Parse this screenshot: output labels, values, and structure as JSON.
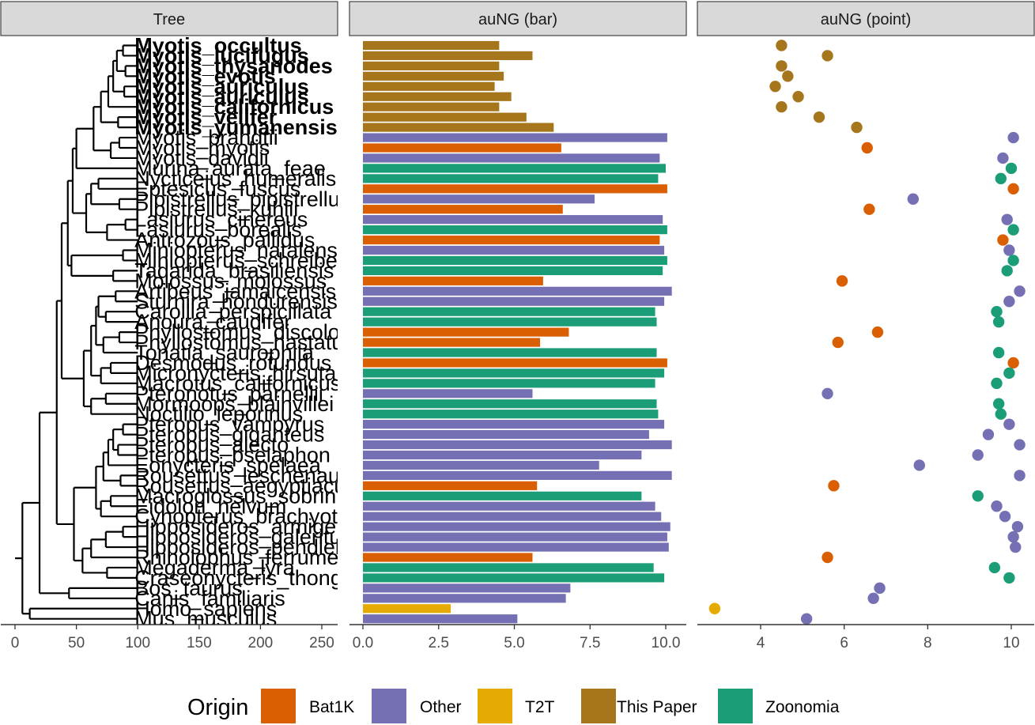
{
  "chart_data": [
    {
      "type": "tree",
      "panel_title": "Tree",
      "xlim": [
        0,
        265
      ],
      "x_ticks": [
        0,
        50,
        100,
        150,
        200,
        250
      ],
      "x_tick_labels": [
        "0",
        "50",
        "100",
        "150",
        "200",
        "250"
      ]
    },
    {
      "type": "bar",
      "panel_title": "auNG (bar)",
      "xlim": [
        0,
        10.6
      ],
      "x_ticks": [
        0,
        2.5,
        5,
        7.5,
        10
      ],
      "x_tick_labels": [
        "0.0",
        "2.5",
        "5.0",
        "7.5",
        "10.0"
      ]
    },
    {
      "type": "scatter",
      "panel_title": "auNG (point)",
      "xlim": [
        2.4,
        10.4
      ],
      "x_ticks": [
        4,
        6,
        8,
        10
      ],
      "x_tick_labels": [
        "4",
        "6",
        "8",
        "10"
      ]
    }
  ],
  "species": [
    {
      "name": "Myotis_occultus",
      "value": 4.5,
      "origin": "This Paper",
      "bold": true
    },
    {
      "name": "Myotis_lucifugus",
      "value": 5.6,
      "origin": "This Paper",
      "bold": true
    },
    {
      "name": "Myotis_thysanodes",
      "value": 4.5,
      "origin": "This Paper",
      "bold": true
    },
    {
      "name": "Myotis_evotis",
      "value": 4.65,
      "origin": "This Paper",
      "bold": true
    },
    {
      "name": "Myotis_auriculus",
      "value": 4.35,
      "origin": "This Paper",
      "bold": true
    },
    {
      "name": "Myotis_auriculus",
      "value": 4.9,
      "origin": "This Paper",
      "bold": true
    },
    {
      "name": "Myotis_californicus",
      "value": 4.5,
      "origin": "This Paper",
      "bold": true
    },
    {
      "name": "Myotis_velifer",
      "value": 5.4,
      "origin": "This Paper",
      "bold": true
    },
    {
      "name": "Myotis_yumanensis",
      "value": 6.3,
      "origin": "This Paper",
      "bold": true
    },
    {
      "name": "Myotis_brandtii",
      "value": 10.05,
      "origin": "Other",
      "bold": false
    },
    {
      "name": "Myotis_myotis",
      "value": 6.55,
      "origin": "Bat1K",
      "bold": false
    },
    {
      "name": "Myotis_davidii",
      "value": 9.8,
      "origin": "Other",
      "bold": false
    },
    {
      "name": "Murina_aurata_feae",
      "value": 10.0,
      "origin": "Zoonomia",
      "bold": false
    },
    {
      "name": "Nycticeius_humeralis",
      "value": 9.75,
      "origin": "Zoonomia",
      "bold": false
    },
    {
      "name": "Eptesicus_fuscus",
      "value": 10.05,
      "origin": "Bat1K",
      "bold": false
    },
    {
      "name": "Pipistrellus_pipistrellus",
      "value": 7.65,
      "origin": "Other",
      "bold": false
    },
    {
      "name": "Pipistrellus_kuhlii",
      "value": 6.6,
      "origin": "Bat1K",
      "bold": false
    },
    {
      "name": "Lasiurus_cinereus",
      "value": 9.9,
      "origin": "Other",
      "bold": false
    },
    {
      "name": "Lasiurus_borealis",
      "value": 10.05,
      "origin": "Zoonomia",
      "bold": false
    },
    {
      "name": "Antrozous_pallidus",
      "value": 9.8,
      "origin": "Bat1K",
      "bold": false
    },
    {
      "name": "Miniopterus_natalensis",
      "value": 9.95,
      "origin": "Other",
      "bold": false
    },
    {
      "name": "Miniopterus_schreibersii",
      "value": 10.05,
      "origin": "Zoonomia",
      "bold": false
    },
    {
      "name": "Tadarida_brasiliensis",
      "value": 9.9,
      "origin": "Zoonomia",
      "bold": false
    },
    {
      "name": "Molossus_molossus",
      "value": 5.95,
      "origin": "Bat1K",
      "bold": false
    },
    {
      "name": "Artibeus_jamaicensis",
      "value": 10.2,
      "origin": "Other",
      "bold": false
    },
    {
      "name": "Sturnira_hondurensis",
      "value": 9.95,
      "origin": "Other",
      "bold": false
    },
    {
      "name": "Carollia_perspicillata",
      "value": 9.65,
      "origin": "Zoonomia",
      "bold": false
    },
    {
      "name": "Anoura_caudifer",
      "value": 9.7,
      "origin": "Zoonomia",
      "bold": false
    },
    {
      "name": "Phyllostomus_discolor",
      "value": 6.8,
      "origin": "Bat1K",
      "bold": false
    },
    {
      "name": "Phyllostomus_hastatus",
      "value": 5.85,
      "origin": "Bat1K",
      "bold": false
    },
    {
      "name": "Tonatia_saurophila",
      "value": 9.7,
      "origin": "Zoonomia",
      "bold": false
    },
    {
      "name": "Desmodus_rotundus",
      "value": 10.05,
      "origin": "Bat1K",
      "bold": false
    },
    {
      "name": "Micronycteris_hirsuta",
      "value": 9.95,
      "origin": "Zoonomia",
      "bold": false
    },
    {
      "name": "Macrotus_californicus",
      "value": 9.65,
      "origin": "Zoonomia",
      "bold": false
    },
    {
      "name": "Pteronotus_parnellii",
      "value": 5.6,
      "origin": "Other",
      "bold": false
    },
    {
      "name": "Mormoops_blainvillei",
      "value": 9.7,
      "origin": "Zoonomia",
      "bold": false
    },
    {
      "name": "Noctilio_leporinus",
      "value": 9.75,
      "origin": "Zoonomia",
      "bold": false
    },
    {
      "name": "Pteropus_vampyrus",
      "value": 9.95,
      "origin": "Other",
      "bold": false
    },
    {
      "name": "Pteropus_giganteus",
      "value": 9.45,
      "origin": "Other",
      "bold": false
    },
    {
      "name": "Pteropus_alecto",
      "value": 10.2,
      "origin": "Other",
      "bold": false
    },
    {
      "name": "Pteropus_pselaphon",
      "value": 9.2,
      "origin": "Other",
      "bold": false
    },
    {
      "name": "Eonycteris_spelaea",
      "value": 7.8,
      "origin": "Other",
      "bold": false
    },
    {
      "name": "Rousettus_leschenaultii",
      "value": 10.2,
      "origin": "Other",
      "bold": false
    },
    {
      "name": "Rousettus_aegyptiacus",
      "value": 5.75,
      "origin": "Bat1K",
      "bold": false
    },
    {
      "name": "Macroglossus_sobrinus",
      "value": 9.2,
      "origin": "Zoonomia",
      "bold": false
    },
    {
      "name": "Eidolon_helvum",
      "value": 9.65,
      "origin": "Other",
      "bold": false
    },
    {
      "name": "Cynopterus_brachyotis",
      "value": 9.85,
      "origin": "Other",
      "bold": false
    },
    {
      "name": "Hipposideros_armiger",
      "value": 10.15,
      "origin": "Other",
      "bold": false
    },
    {
      "name": "Hipposideros_galeritus",
      "value": 10.05,
      "origin": "Other",
      "bold": false
    },
    {
      "name": "Hipposideros_pendleburyi",
      "value": 10.1,
      "origin": "Other",
      "bold": false
    },
    {
      "name": "Rhinolophus_ferrumequinum",
      "value": 5.6,
      "origin": "Bat1K",
      "bold": false
    },
    {
      "name": "Megaderma_lyra",
      "value": 9.6,
      "origin": "Zoonomia",
      "bold": false
    },
    {
      "name": "Craseonycteris_thonglongyai",
      "value": 9.95,
      "origin": "Zoonomia",
      "bold": false
    },
    {
      "name": "Bos_taurus",
      "value": 6.85,
      "origin": "Other",
      "bold": false
    },
    {
      "name": "Canis_familiaris",
      "value": 6.7,
      "origin": "Other",
      "bold": false
    },
    {
      "name": "Homo_sapiens",
      "value": 2.9,
      "origin": "T2T",
      "bold": false
    },
    {
      "name": "Mus_musculus",
      "value": 5.1,
      "origin": "Other",
      "bold": false
    }
  ],
  "legend": {
    "title": "Origin",
    "items": [
      {
        "label": "Bat1K",
        "color": "#D95F02"
      },
      {
        "label": "Other",
        "color": "#7570B3"
      },
      {
        "label": "T2T",
        "color": "#E6AB02"
      },
      {
        "label": "This Paper",
        "color": "#A6761D"
      },
      {
        "label": "Zoonomia",
        "color": "#1B9E77"
      }
    ]
  }
}
